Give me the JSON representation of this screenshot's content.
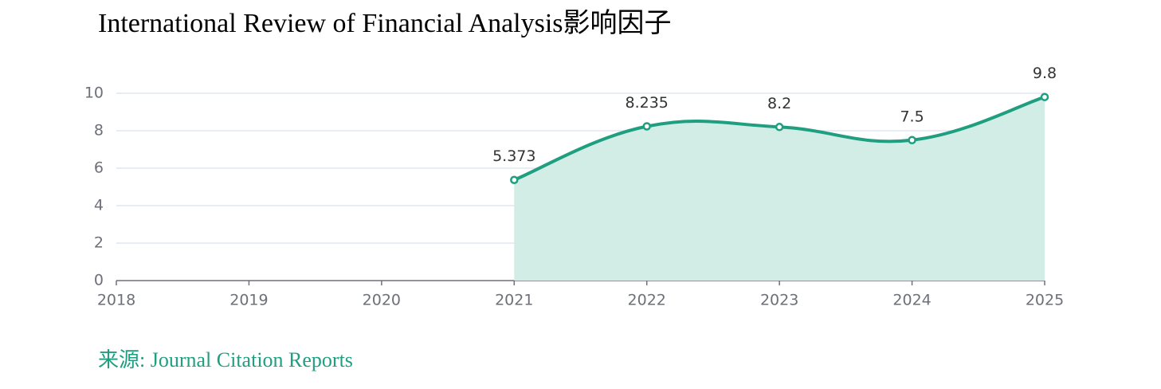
{
  "chart_data": {
    "type": "line",
    "title": "International Review of Financial Analysis影响因子",
    "categories": [
      "2018",
      "2019",
      "2020",
      "2021",
      "2022",
      "2023",
      "2024",
      "2025"
    ],
    "values": [
      null,
      null,
      null,
      5.373,
      8.235,
      8.2,
      7.5,
      9.8
    ],
    "color": "#1f9e80",
    "area_color": "#d1ede6",
    "ylim": [
      0,
      10
    ],
    "yticks": [
      0,
      2,
      4,
      6,
      8,
      10
    ],
    "grid": true,
    "smooth": true,
    "source": "来源: Journal Citation Reports"
  }
}
